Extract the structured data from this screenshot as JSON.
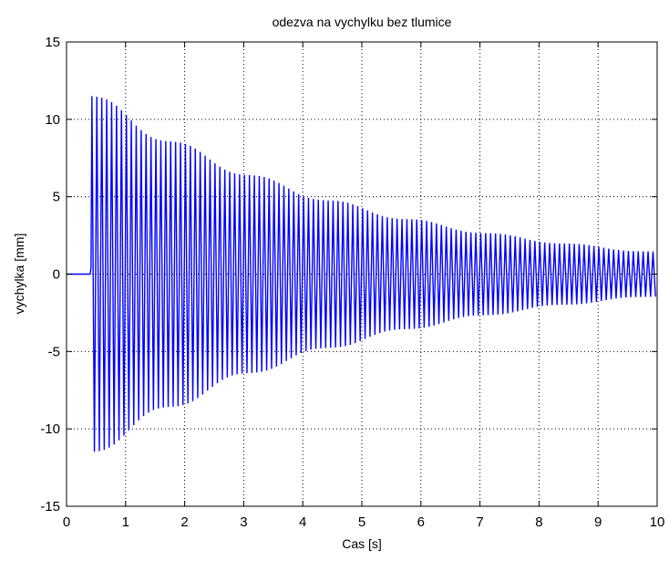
{
  "chart_data": {
    "type": "line",
    "title": "odezva na vychylku bez tlumice",
    "xlabel": "Cas [s]",
    "ylabel": "vychylka [mm]",
    "xlim": [
      0,
      10
    ],
    "ylim": [
      -15,
      15
    ],
    "xticks": [
      "0",
      "1",
      "2",
      "3",
      "4",
      "5",
      "6",
      "7",
      "8",
      "9",
      "10"
    ],
    "yticks": [
      "-15",
      "-10",
      "-5",
      "0",
      "5",
      "10",
      "15"
    ],
    "grid": true,
    "series": [
      {
        "color": "#0000ff",
        "pre_offset": 0.4,
        "start_time": 0.43,
        "initial_amplitude": 11.5,
        "end_amplitude": 1.4,
        "frequency_hz": 12,
        "beat_frequency_hz": 0.75
      }
    ]
  }
}
